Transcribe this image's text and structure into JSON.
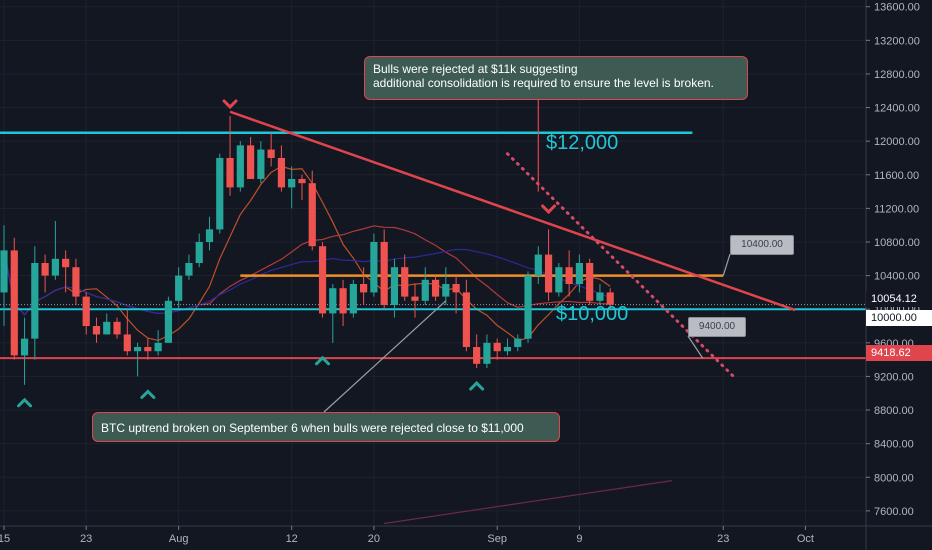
{
  "chart_data": {
    "type": "candlestick",
    "y_axis": {
      "ticks": [
        13600,
        13200,
        12800,
        12400,
        12000,
        11600,
        11200,
        10800,
        10400,
        10000,
        9600,
        9200,
        8800,
        8400,
        8000,
        7600
      ],
      "tick_labels": [
        "13600.00",
        "13200.00",
        "12800.00",
        "12400.00",
        "12000.00",
        "11600.00",
        "11200.00",
        "10800.00",
        "10400.00",
        "10000.00",
        "9600.00",
        "9200.00",
        "8800.00",
        "8400.00",
        "8000.00",
        "7600.00"
      ],
      "ylim": [
        7420,
        13680
      ]
    },
    "x_axis": {
      "tick_labels": [
        "15",
        "23",
        "Aug",
        "12",
        "20",
        "Sep",
        "9",
        "23",
        "Oct"
      ],
      "tick_dates": [
        "2019-07-15",
        "2019-07-23",
        "2019-08-01",
        "2019-08-12",
        "2019-08-20",
        "2019-09-01",
        "2019-09-09",
        "2019-09-23",
        "2019-10-01"
      ],
      "xlim": [
        "2019-07-15",
        "2019-10-03"
      ]
    },
    "price_tags": {
      "last_price": "10054.12",
      "level_10000": "10000.00",
      "level_9418": "9418.62"
    },
    "horizontal_levels": [
      {
        "price": 12100,
        "color": "#1fc7d6"
      },
      {
        "price": 10000,
        "color": "#1fc7d6"
      },
      {
        "price": 9418.62,
        "color": "#e0454d"
      },
      {
        "price": 10400,
        "color": "#f0902c"
      }
    ],
    "level_labels": {
      "twelve_k": "$12,000",
      "ten_k": "$10,000"
    },
    "callouts": {
      "c10400": "10400.00",
      "c9400": "9400.00"
    },
    "annotations": {
      "top_line1": "Bulls were rejected at $11k suggesting",
      "top_line2": "additional consolidation is required to ensure the level is broken.",
      "bottom": "BTC uptrend broken on September 6 when bulls were rejected close to $11,000"
    },
    "colors": {
      "up": "#26a69a",
      "down": "#ef5350",
      "trend": "#e0454d",
      "support_cyan": "#1fc7d6",
      "resistance_orange": "#f0902c",
      "ma_blue": "#2a2a9a",
      "ma_red": "#b03a3a",
      "ma_orange": "#c0502a"
    },
    "candles": [
      {
        "d": "2019-07-15",
        "o": 10200,
        "h": 11000,
        "l": 9800,
        "c": 10700
      },
      {
        "d": "2019-07-16",
        "o": 10700,
        "h": 10850,
        "l": 9400,
        "c": 9450
      },
      {
        "d": "2019-07-17",
        "o": 9450,
        "h": 9900,
        "l": 9100,
        "c": 9650
      },
      {
        "d": "2019-07-18",
        "o": 9650,
        "h": 10750,
        "l": 9400,
        "c": 10550
      },
      {
        "d": "2019-07-19",
        "o": 10550,
        "h": 10650,
        "l": 10200,
        "c": 10400
      },
      {
        "d": "2019-07-20",
        "o": 10400,
        "h": 11050,
        "l": 10350,
        "c": 10600
      },
      {
        "d": "2019-07-21",
        "o": 10600,
        "h": 10700,
        "l": 10200,
        "c": 10500
      },
      {
        "d": "2019-07-22",
        "o": 10500,
        "h": 10600,
        "l": 10050,
        "c": 10150
      },
      {
        "d": "2019-07-23",
        "o": 10150,
        "h": 10200,
        "l": 9700,
        "c": 9800
      },
      {
        "d": "2019-07-24",
        "o": 9800,
        "h": 9900,
        "l": 9600,
        "c": 9700
      },
      {
        "d": "2019-07-25",
        "o": 9700,
        "h": 9950,
        "l": 9700,
        "c": 9850
      },
      {
        "d": "2019-07-26",
        "o": 9850,
        "h": 9900,
        "l": 9650,
        "c": 9700
      },
      {
        "d": "2019-07-27",
        "o": 9700,
        "h": 10000,
        "l": 9450,
        "c": 9500
      },
      {
        "d": "2019-07-28",
        "o": 9500,
        "h": 9600,
        "l": 9200,
        "c": 9550
      },
      {
        "d": "2019-07-29",
        "o": 9550,
        "h": 9650,
        "l": 9400,
        "c": 9500
      },
      {
        "d": "2019-07-30",
        "o": 9500,
        "h": 9750,
        "l": 9450,
        "c": 9600
      },
      {
        "d": "2019-07-31",
        "o": 9600,
        "h": 10150,
        "l": 9600,
        "c": 10100
      },
      {
        "d": "2019-08-01",
        "o": 10100,
        "h": 10500,
        "l": 10000,
        "c": 10400
      },
      {
        "d": "2019-08-02",
        "o": 10400,
        "h": 10650,
        "l": 10350,
        "c": 10550
      },
      {
        "d": "2019-08-03",
        "o": 10550,
        "h": 10900,
        "l": 10500,
        "c": 10800
      },
      {
        "d": "2019-08-04",
        "o": 10800,
        "h": 11100,
        "l": 10700,
        "c": 10950
      },
      {
        "d": "2019-08-05",
        "o": 10950,
        "h": 11850,
        "l": 10900,
        "c": 11800
      },
      {
        "d": "2019-08-06",
        "o": 11800,
        "h": 12300,
        "l": 11350,
        "c": 11450
      },
      {
        "d": "2019-08-07",
        "o": 11450,
        "h": 12000,
        "l": 11400,
        "c": 11950
      },
      {
        "d": "2019-08-08",
        "o": 11950,
        "h": 12050,
        "l": 11550,
        "c": 11550
      },
      {
        "d": "2019-08-09",
        "o": 11550,
        "h": 12000,
        "l": 11500,
        "c": 11900
      },
      {
        "d": "2019-08-10",
        "o": 11900,
        "h": 12100,
        "l": 11700,
        "c": 11800
      },
      {
        "d": "2019-08-11",
        "o": 11800,
        "h": 11950,
        "l": 11400,
        "c": 11450
      },
      {
        "d": "2019-08-12",
        "o": 11450,
        "h": 11700,
        "l": 11200,
        "c": 11550
      },
      {
        "d": "2019-08-13",
        "o": 11550,
        "h": 11600,
        "l": 11300,
        "c": 11500
      },
      {
        "d": "2019-08-14",
        "o": 11500,
        "h": 11650,
        "l": 10700,
        "c": 10750
      },
      {
        "d": "2019-08-15",
        "o": 10750,
        "h": 10800,
        "l": 9900,
        "c": 9950
      },
      {
        "d": "2019-08-16",
        "o": 9950,
        "h": 10300,
        "l": 9600,
        "c": 10250
      },
      {
        "d": "2019-08-17",
        "o": 10250,
        "h": 10350,
        "l": 9800,
        "c": 9950
      },
      {
        "d": "2019-08-18",
        "o": 9950,
        "h": 10350,
        "l": 9900,
        "c": 10300
      },
      {
        "d": "2019-08-19",
        "o": 10300,
        "h": 10500,
        "l": 10050,
        "c": 10200
      },
      {
        "d": "2019-08-20",
        "o": 10200,
        "h": 10900,
        "l": 10150,
        "c": 10800
      },
      {
        "d": "2019-08-21",
        "o": 10800,
        "h": 10950,
        "l": 10000,
        "c": 10050
      },
      {
        "d": "2019-08-22",
        "o": 10050,
        "h": 10600,
        "l": 9900,
        "c": 10500
      },
      {
        "d": "2019-08-23",
        "o": 10500,
        "h": 10650,
        "l": 10100,
        "c": 10150
      },
      {
        "d": "2019-08-24",
        "o": 10150,
        "h": 10300,
        "l": 9900,
        "c": 10100
      },
      {
        "d": "2019-08-25",
        "o": 10100,
        "h": 10500,
        "l": 10050,
        "c": 10350
      },
      {
        "d": "2019-08-26",
        "o": 10350,
        "h": 10400,
        "l": 10100,
        "c": 10150
      },
      {
        "d": "2019-08-27",
        "o": 10150,
        "h": 10500,
        "l": 10050,
        "c": 10300
      },
      {
        "d": "2019-08-28",
        "o": 10300,
        "h": 10400,
        "l": 9950,
        "c": 10200
      },
      {
        "d": "2019-08-29",
        "o": 10200,
        "h": 10350,
        "l": 9500,
        "c": 9550
      },
      {
        "d": "2019-08-30",
        "o": 9550,
        "h": 9700,
        "l": 9300,
        "c": 9350
      },
      {
        "d": "2019-08-31",
        "o": 9350,
        "h": 9700,
        "l": 9300,
        "c": 9600
      },
      {
        "d": "2019-09-01",
        "o": 9600,
        "h": 9650,
        "l": 9400,
        "c": 9500
      },
      {
        "d": "2019-09-02",
        "o": 9500,
        "h": 9650,
        "l": 9450,
        "c": 9550
      },
      {
        "d": "2019-09-03",
        "o": 9550,
        "h": 9700,
        "l": 9500,
        "c": 9650
      },
      {
        "d": "2019-09-04",
        "o": 9650,
        "h": 10450,
        "l": 9600,
        "c": 10400
      },
      {
        "d": "2019-09-05",
        "o": 10400,
        "h": 10750,
        "l": 10300,
        "c": 10650
      },
      {
        "d": "2019-09-06",
        "o": 10650,
        "h": 10950,
        "l": 10100,
        "c": 10200
      },
      {
        "d": "2019-09-07",
        "o": 10200,
        "h": 10550,
        "l": 10150,
        "c": 10500
      },
      {
        "d": "2019-09-08",
        "o": 10500,
        "h": 10700,
        "l": 10150,
        "c": 10300
      },
      {
        "d": "2019-09-09",
        "o": 10300,
        "h": 10650,
        "l": 10200,
        "c": 10550
      },
      {
        "d": "2019-09-10",
        "o": 10550,
        "h": 10600,
        "l": 10050,
        "c": 10100
      },
      {
        "d": "2019-09-11",
        "o": 10100,
        "h": 10300,
        "l": 10050,
        "c": 10200
      },
      {
        "d": "2019-09-12",
        "o": 10200,
        "h": 10250,
        "l": 10000,
        "c": 10054
      }
    ]
  }
}
